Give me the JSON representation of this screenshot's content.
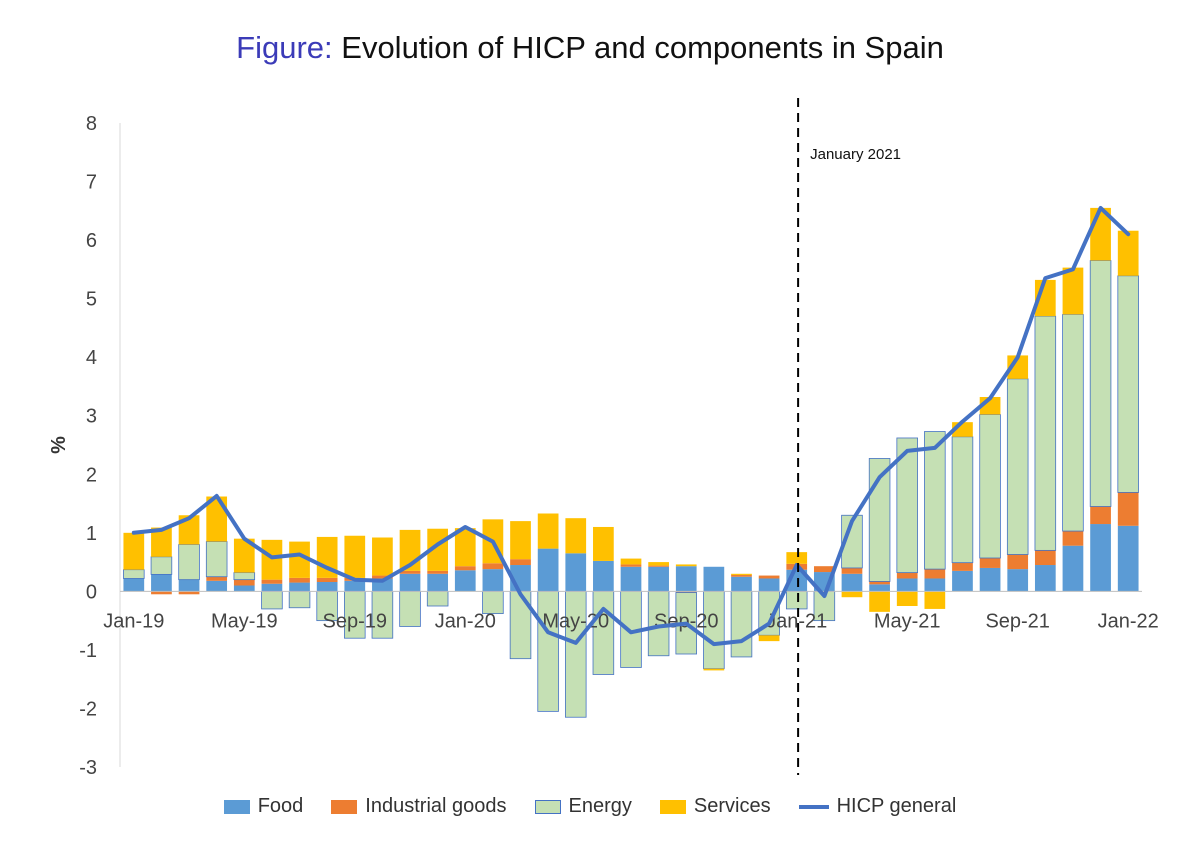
{
  "title": {
    "prefix": "Figure:",
    "text": "Evolution of HICP and components in Spain"
  },
  "colors": {
    "food": "#5b9bd5",
    "industrial": "#ed7d31",
    "energy": "#c5e0b4",
    "energy_border": "#4472c4",
    "services": "#ffc000",
    "hicp": "#4472c4"
  },
  "chart_data": {
    "type": "bar",
    "stacked": true,
    "title": "Evolution of HICP and components in Spain",
    "xlabel": "",
    "ylabel": "%",
    "ylim": [
      -3,
      8
    ],
    "yticks": [
      "8",
      "7",
      "6",
      "5",
      "4",
      "3",
      "2",
      "1",
      "0",
      "-1",
      "-2",
      "-3"
    ],
    "x_tick_labels": [
      {
        "index": 0,
        "label": "Jan-19"
      },
      {
        "index": 4,
        "label": "May-19"
      },
      {
        "index": 8,
        "label": "Sep-19"
      },
      {
        "index": 12,
        "label": "Jan-20"
      },
      {
        "index": 16,
        "label": "May-20"
      },
      {
        "index": 20,
        "label": "Sep-20"
      },
      {
        "index": 24,
        "label": "Jan-21"
      },
      {
        "index": 28,
        "label": "May-21"
      },
      {
        "index": 32,
        "label": "Sep-21"
      },
      {
        "index": 36,
        "label": "Jan-22"
      }
    ],
    "categories": [
      "Jan-19",
      "Feb-19",
      "Mar-19",
      "Apr-19",
      "May-19",
      "Jun-19",
      "Jul-19",
      "Aug-19",
      "Sep-19",
      "Oct-19",
      "Nov-19",
      "Dec-19",
      "Jan-20",
      "Feb-20",
      "Mar-20",
      "Apr-20",
      "May-20",
      "Jun-20",
      "Jul-20",
      "Aug-20",
      "Sep-20",
      "Oct-20",
      "Nov-20",
      "Dec-20",
      "Jan-21",
      "Feb-21",
      "Mar-21",
      "Apr-21",
      "May-21",
      "Jun-21",
      "Jul-21",
      "Aug-21",
      "Sep-21",
      "Oct-21",
      "Nov-21",
      "Dec-21",
      "Jan-22"
    ],
    "series": [
      {
        "name": "Food",
        "values": [
          0.22,
          0.29,
          0.2,
          0.18,
          0.1,
          0.13,
          0.15,
          0.16,
          0.18,
          0.22,
          0.3,
          0.3,
          0.36,
          0.38,
          0.45,
          0.73,
          0.65,
          0.52,
          0.42,
          0.42,
          0.43,
          0.42,
          0.25,
          0.22,
          0.37,
          0.33,
          0.3,
          0.12,
          0.22,
          0.22,
          0.35,
          0.4,
          0.38,
          0.45,
          0.78,
          1.15,
          1.12
        ]
      },
      {
        "name": "Industrial goods",
        "values": [
          0.0,
          -0.05,
          -0.05,
          0.07,
          0.1,
          0.07,
          0.08,
          0.07,
          0.05,
          0.05,
          0.05,
          0.05,
          0.07,
          0.1,
          0.1,
          0.0,
          0.0,
          0.0,
          0.04,
          0.02,
          -0.02,
          0.0,
          0.03,
          0.05,
          0.1,
          0.1,
          0.1,
          0.05,
          0.1,
          0.16,
          0.14,
          0.17,
          0.25,
          0.25,
          0.25,
          0.3,
          0.57
        ]
      },
      {
        "name": "Energy",
        "values": [
          0.15,
          0.3,
          0.6,
          0.6,
          0.12,
          -0.3,
          -0.28,
          -0.5,
          -0.8,
          -0.8,
          -0.6,
          -0.25,
          0.0,
          -0.38,
          -1.15,
          -2.05,
          -2.15,
          -1.42,
          -1.3,
          -1.1,
          -1.05,
          -1.32,
          -1.12,
          -0.75,
          -0.3,
          -0.5,
          0.9,
          2.1,
          2.3,
          2.35,
          2.15,
          2.45,
          3.0,
          4.0,
          3.7,
          4.2,
          3.7
        ]
      },
      {
        "name": "Services",
        "values": [
          0.63,
          0.5,
          0.5,
          0.77,
          0.58,
          0.68,
          0.62,
          0.7,
          0.72,
          0.65,
          0.7,
          0.72,
          0.65,
          0.75,
          0.65,
          0.6,
          0.6,
          0.58,
          0.1,
          0.06,
          0.03,
          -0.03,
          0.02,
          -0.1,
          0.2,
          0.0,
          -0.1,
          -0.35,
          -0.25,
          -0.3,
          0.25,
          0.3,
          0.4,
          0.62,
          0.8,
          0.9,
          0.77
        ]
      }
    ],
    "line": {
      "name": "HICP general",
      "values": [
        1.0,
        1.05,
        1.25,
        1.63,
        0.9,
        0.58,
        0.63,
        0.4,
        0.2,
        0.18,
        0.45,
        0.8,
        1.1,
        0.85,
        -0.05,
        -0.7,
        -0.88,
        -0.3,
        -0.7,
        -0.6,
        -0.55,
        -0.9,
        -0.85,
        -0.55,
        0.45,
        -0.08,
        1.2,
        1.95,
        2.4,
        2.45,
        2.9,
        3.3,
        4.0,
        5.35,
        5.5,
        6.55,
        6.1
      ]
    },
    "annotation": {
      "label": "January 2021",
      "x_index": 24,
      "style": "dashed vertical line"
    },
    "legend": [
      {
        "name": "Food",
        "kind": "bar"
      },
      {
        "name": "Industrial goods",
        "kind": "bar"
      },
      {
        "name": "Energy",
        "kind": "bar"
      },
      {
        "name": "Services",
        "kind": "bar"
      },
      {
        "name": "HICP general",
        "kind": "line"
      }
    ],
    "legend_position": "bottom"
  }
}
